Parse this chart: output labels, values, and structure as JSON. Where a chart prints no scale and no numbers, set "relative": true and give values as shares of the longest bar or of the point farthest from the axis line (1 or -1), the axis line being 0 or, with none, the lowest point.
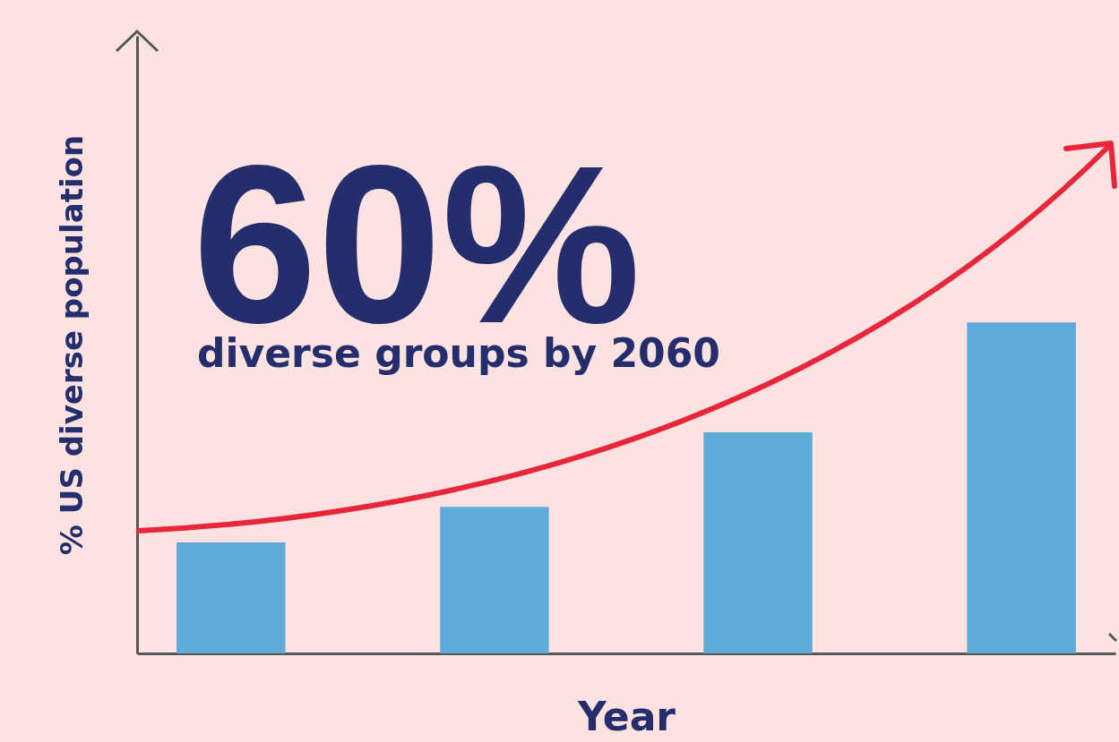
{
  "chart_data": {
    "type": "bar",
    "relative": true,
    "categories": [
      null,
      null,
      null,
      null
    ],
    "values": [
      0.335,
      0.443,
      0.668,
      1
    ],
    "color": "#5eaadb",
    "xlabel": "Year",
    "ylabel": "% US diverse population",
    "annotations": [
      "60%",
      "diverse groups by 2060"
    ]
  }
}
